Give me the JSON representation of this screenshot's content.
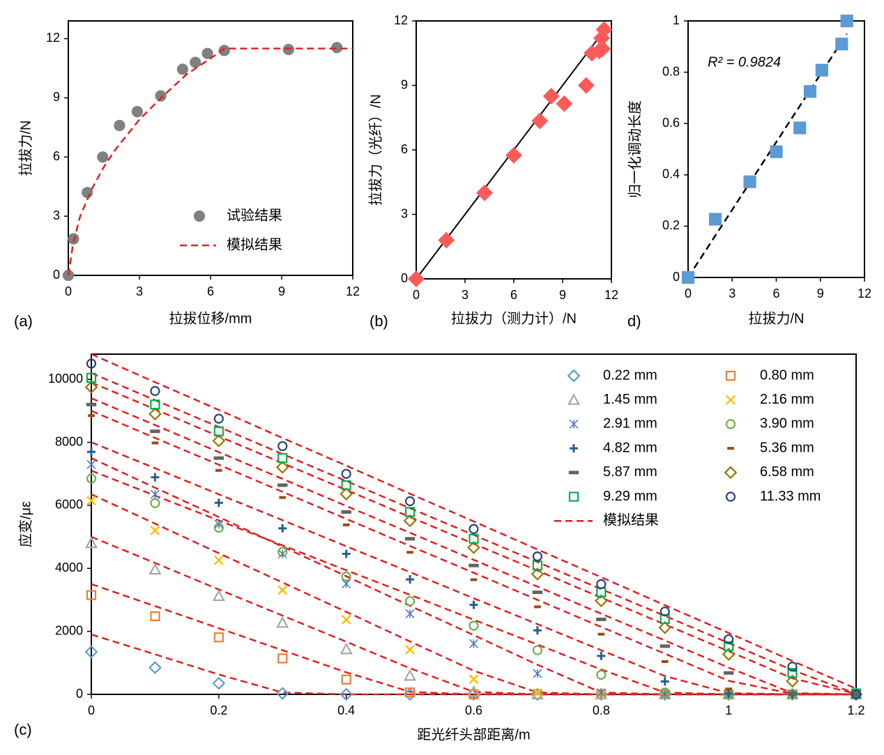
{
  "chart_data": [
    {
      "type": "scatter",
      "label": "(a)",
      "x_label": "拉拔位移/mm",
      "y_label": "拉拔力/N",
      "xlim": [
        0,
        12
      ],
      "ylim": [
        0,
        12.9
      ],
      "xticks": [
        0,
        3,
        6,
        9,
        12
      ],
      "yticks": [
        0,
        3,
        6,
        9,
        12
      ],
      "legend": "lower right",
      "series": [
        {
          "name": "试验结果",
          "color": "#808080",
          "marker": "circle",
          "filled": true,
          "x": [
            0,
            0.22,
            0.8,
            1.45,
            2.16,
            2.91,
            3.9,
            4.82,
            5.36,
            5.87,
            6.58,
            9.29,
            11.33
          ],
          "values": [
            0,
            1.85,
            4.2,
            6.0,
            7.6,
            8.3,
            9.1,
            10.45,
            10.8,
            11.25,
            11.4,
            11.45,
            11.55
          ]
        },
        {
          "name": "模拟结果",
          "color": "#e02020",
          "mode": "line",
          "dash": true,
          "x": [
            0,
            0.2,
            0.5,
            1,
            1.5,
            2,
            3,
            4,
            5,
            6,
            6.6,
            12
          ],
          "values": [
            0,
            1.6,
            3.0,
            4.4,
            5.5,
            6.4,
            7.9,
            9.1,
            10.2,
            11.0,
            11.5,
            11.5
          ]
        }
      ]
    },
    {
      "type": "scatter",
      "label": "(b)",
      "x_label": "拉拔力（测力计）/N",
      "y_label": "拉拔力（光纤）/N",
      "xlim": [
        0,
        12
      ],
      "ylim": [
        0,
        12
      ],
      "xticks": [
        0,
        3,
        6,
        9,
        12
      ],
      "yticks": [
        0,
        3,
        6,
        9,
        12
      ],
      "series": [
        {
          "color": "#000000",
          "mode": "line",
          "x": [
            0,
            11.6
          ],
          "values": [
            0,
            11.6
          ]
        },
        {
          "color": "#ff5a5a",
          "marker": "diamond",
          "filled": true,
          "x": [
            0,
            1.85,
            4.2,
            6.0,
            7.6,
            8.3,
            9.1,
            10.45,
            10.8,
            11.25,
            11.4,
            11.45,
            11.55
          ],
          "values": [
            0,
            1.8,
            4.0,
            5.75,
            7.35,
            8.5,
            8.15,
            9.0,
            10.5,
            10.6,
            11.2,
            10.7,
            11.6
          ]
        }
      ]
    },
    {
      "type": "scatter",
      "label": "d)",
      "x_label": "拉拔力/N",
      "y_label": "归一化调动长度",
      "xlim": [
        0,
        12
      ],
      "ylim": [
        0,
        1
      ],
      "xticks": [
        0,
        3,
        6,
        9,
        12
      ],
      "yticks": [
        0,
        0.2,
        0.4,
        0.6,
        0.8,
        1
      ],
      "annotation": "R² = 0.9824",
      "series": [
        {
          "color": "#000000",
          "mode": "line",
          "dash": true,
          "x": [
            0,
            10.8
          ],
          "values": [
            0,
            0.95
          ]
        },
        {
          "color": "#5b9bd5",
          "marker": "square",
          "filled": true,
          "x": [
            0,
            1.85,
            4.2,
            6.0,
            7.6,
            8.3,
            9.1,
            10.45,
            10.8
          ],
          "values": [
            0,
            0.227,
            0.373,
            0.49,
            0.583,
            0.725,
            0.808,
            0.91,
            1.0
          ]
        }
      ]
    },
    {
      "type": "scatter",
      "label": "(c)",
      "x_label": "距光纤头部距离/m",
      "y_label": "应变/με",
      "xlim": [
        0,
        1.2
      ],
      "ylim": [
        0,
        10800
      ],
      "xticks": [
        0,
        0.2,
        0.4,
        0.6,
        0.8,
        1,
        1.2
      ],
      "yticks": [
        0,
        2000,
        4000,
        6000,
        8000,
        10000
      ],
      "legend": "upper right",
      "x": [
        0,
        0.1,
        0.2,
        0.3,
        0.4,
        0.5,
        0.6,
        0.7,
        0.8,
        0.9,
        1,
        1.1,
        1.2
      ],
      "series": [
        {
          "name": "0.22 mm",
          "color": "#5b9bd5",
          "marker": "diamond",
          "values": [
            1350,
            850,
            350,
            30,
            0,
            0,
            0,
            0,
            0,
            0,
            0,
            0,
            0
          ]
        },
        {
          "name": "0.80 mm",
          "color": "#ed7d31",
          "marker": "square",
          "values": [
            3150,
            2480,
            1810,
            1140,
            470,
            60,
            0,
            0,
            0,
            0,
            0,
            0,
            0
          ]
        },
        {
          "name": "1.45 mm",
          "color": "#a5a5a5",
          "marker": "triangle",
          "values": [
            4800,
            3960,
            3120,
            2270,
            1430,
            590,
            80,
            0,
            0,
            0,
            0,
            0,
            0
          ]
        },
        {
          "name": "2.16 mm",
          "color": "#ffc000",
          "marker": "x",
          "values": [
            6150,
            5200,
            4260,
            3310,
            2370,
            1420,
            480,
            40,
            0,
            0,
            0,
            0,
            0
          ]
        },
        {
          "name": "2.91 mm",
          "color": "#4472c4",
          "marker": "asterisk",
          "values": [
            7300,
            6350,
            5400,
            4460,
            3510,
            2560,
            1610,
            660,
            50,
            0,
            0,
            0,
            0
          ]
        },
        {
          "name": "3.90 mm",
          "color": "#70ad47",
          "marker": "circle",
          "values": [
            6850,
            6070,
            5290,
            4520,
            3740,
            2960,
            2180,
            1400,
            620,
            60,
            0,
            0,
            0
          ]
        },
        {
          "name": "4.82 mm",
          "color": "#255e91",
          "marker": "plus",
          "values": [
            7700,
            6890,
            6080,
            5270,
            4460,
            3650,
            2840,
            2030,
            1220,
            410,
            20,
            0,
            0
          ]
        },
        {
          "name": "5.36 mm",
          "color": "#9e480e",
          "marker": "dash",
          "values": [
            8850,
            7980,
            7110,
            6250,
            5380,
            4510,
            3640,
            2780,
            1910,
            1040,
            170,
            0,
            0
          ]
        },
        {
          "name": "5.87 mm",
          "color": "#636363",
          "marker": "bar",
          "values": [
            9200,
            8350,
            7500,
            6640,
            5790,
            4940,
            4090,
            3240,
            2380,
            1530,
            680,
            30,
            0
          ]
        },
        {
          "name": "6.58 mm",
          "color": "#997300",
          "marker": "diamond",
          "values": [
            9750,
            8900,
            8050,
            7210,
            6360,
            5510,
            4660,
            3820,
            2970,
            2120,
            1270,
            420,
            0
          ]
        },
        {
          "name": "9.29 mm",
          "color": "#00b050",
          "marker": "square",
          "values": [
            10050,
            9200,
            8350,
            7500,
            6640,
            5790,
            4940,
            4090,
            3240,
            2390,
            1530,
            680,
            30
          ]
        },
        {
          "name": "11.33 mm",
          "color": "#264478",
          "marker": "circle",
          "values": [
            10500,
            9630,
            8750,
            7880,
            7000,
            6130,
            5250,
            4380,
            3500,
            2630,
            1750,
            880,
            0
          ]
        }
      ],
      "model": {
        "name": "模拟结果",
        "color": "#e02020",
        "lines": [
          [
            1900,
            1270,
            630,
            60,
            0,
            0,
            0,
            0,
            0,
            0,
            0,
            0,
            0
          ],
          [
            3500,
            2800,
            2100,
            1400,
            700,
            80,
            0,
            0,
            0,
            0,
            0,
            0,
            0
          ],
          [
            5000,
            4170,
            3330,
            2500,
            1670,
            830,
            80,
            0,
            0,
            0,
            0,
            0,
            0
          ],
          [
            6350,
            5420,
            4480,
            3550,
            2620,
            1680,
            750,
            60,
            0,
            0,
            0,
            0,
            0
          ],
          [
            7500,
            6560,
            5630,
            4690,
            3750,
            2810,
            1880,
            940,
            60,
            0,
            0,
            0,
            0
          ],
          [
            7100,
            6310,
            5520,
            4730,
            3940,
            3160,
            2370,
            1580,
            790,
            60,
            0,
            0,
            0
          ],
          [
            8000,
            7180,
            6350,
            5530,
            4700,
            3880,
            3050,
            2230,
            1400,
            580,
            40,
            0,
            0
          ],
          [
            9000,
            8140,
            7290,
            6430,
            5570,
            4710,
            3860,
            3000,
            2140,
            1290,
            430,
            20,
            0
          ],
          [
            9400,
            8550,
            7690,
            6840,
            5980,
            5130,
            4270,
            3420,
            2560,
            1710,
            850,
            40,
            0
          ],
          [
            9900,
            9050,
            8190,
            7340,
            6490,
            5630,
            4780,
            3930,
            3070,
            2220,
            1370,
            510,
            20
          ],
          [
            10200,
            9340,
            8490,
            7630,
            6770,
            5910,
            5060,
            4200,
            3340,
            2490,
            1630,
            770,
            20
          ],
          [
            10800,
            9910,
            9030,
            8140,
            7260,
            6370,
            5490,
            4600,
            3720,
            2830,
            1950,
            1060,
            180
          ]
        ]
      }
    }
  ]
}
